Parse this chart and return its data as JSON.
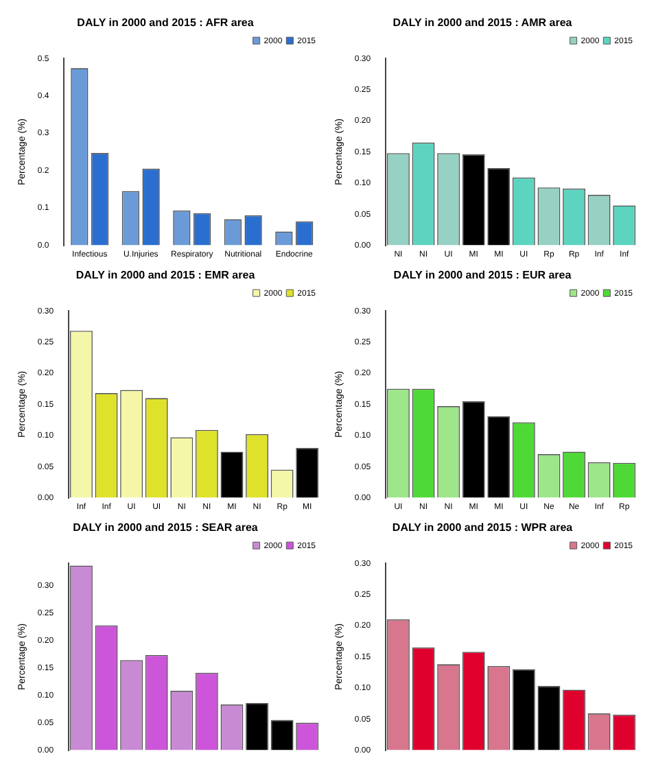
{
  "chart_data": [
    {
      "type": "bar",
      "title": "DALY in 2000 and 2015 : AFR area",
      "ylabel": "Percentage (%)",
      "categories": [
        "Infectious",
        "U.Injuries",
        "Respiratory",
        "Nutritional",
        "Endocrine"
      ],
      "series": [
        {
          "name": "2000",
          "color": "#6a9bd8",
          "values": [
            0.474,
            0.145,
            0.093,
            0.07,
            0.037
          ]
        },
        {
          "name": "2015",
          "color": "#2a6fcf",
          "values": [
            0.247,
            0.205,
            0.086,
            0.08,
            0.064
          ]
        }
      ],
      "ylim": [
        0,
        0.5
      ],
      "yticks": [
        {
          "value": 0,
          "label": "0.0"
        },
        {
          "value": 0.1,
          "label": "0.1"
        },
        {
          "value": 0.2,
          "label": "0.2"
        },
        {
          "value": 0.3,
          "label": "0.3"
        },
        {
          "value": 0.4,
          "label": "0.4"
        },
        {
          "value": 0.5,
          "label": "0.5"
        }
      ],
      "legend": "top right",
      "grid": false
    },
    {
      "type": "bar",
      "title": "DALY in 2000 and 2015 : AMR area",
      "ylabel": "Percentage (%)",
      "categories": [
        "NI",
        "NI",
        "UI",
        "MI",
        "MI",
        "UI",
        "Rp",
        "Rp",
        "Inf",
        "Inf"
      ],
      "series": [
        {
          "name": "2000",
          "color": "#96d1c4",
          "values": [
            0.148,
            null,
            0.148,
            null,
            0.124,
            null,
            0.093,
            null,
            0.081,
            null
          ],
          "colors": [
            "#96d1c4",
            null,
            "#96d1c4",
            null,
            "#000000",
            null,
            "#96d1c4",
            null,
            "#96d1c4",
            null
          ]
        },
        {
          "name": "2015",
          "color": "#5dd4c0",
          "values": [
            null,
            0.165,
            null,
            0.146,
            null,
            0.109,
            null,
            0.091,
            null,
            0.064
          ],
          "colors": [
            null,
            "#5dd4c0",
            null,
            "#000000",
            null,
            "#5dd4c0",
            null,
            "#5dd4c0",
            null,
            "#5dd4c0"
          ]
        }
      ],
      "ylim": [
        0,
        0.3
      ],
      "yticks": [
        {
          "value": 0,
          "label": "0.00"
        },
        {
          "value": 0.05,
          "label": "0.05"
        },
        {
          "value": 0.1,
          "label": "0.10"
        },
        {
          "value": 0.15,
          "label": "0.15"
        },
        {
          "value": 0.2,
          "label": "0.20"
        },
        {
          "value": 0.25,
          "label": "0.25"
        },
        {
          "value": 0.3,
          "label": "0.30"
        }
      ],
      "legend": "top right",
      "grid": false
    },
    {
      "type": "bar",
      "title": "DALY in 2000 and 2015 : EMR area",
      "ylabel": "Percentage (%)",
      "categories": [
        "Inf",
        "Inf",
        "UI",
        "UI",
        "NI",
        "NI",
        "MI",
        "NI",
        "Rp",
        "MI"
      ],
      "series": [
        {
          "name": "2000",
          "color": "#f4f7a8",
          "values": [
            0.268,
            null,
            0.173,
            null,
            0.097,
            null,
            0.074,
            null,
            0.045,
            null
          ],
          "colors": [
            "#f4f7a8",
            null,
            "#f4f7a8",
            null,
            "#f4f7a8",
            null,
            "#000000",
            null,
            "#f4f7a8",
            null
          ]
        },
        {
          "name": "2015",
          "color": "#dfe22a",
          "values": [
            null,
            0.168,
            null,
            0.16,
            null,
            0.109,
            null,
            0.102,
            null,
            0.08
          ],
          "colors": [
            null,
            "#dfe22a",
            null,
            "#dfe22a",
            null,
            "#dfe22a",
            null,
            "#dfe22a",
            null,
            "#000000"
          ]
        }
      ],
      "ylim": [
        0,
        0.3
      ],
      "yticks": [
        {
          "value": 0,
          "label": "0.00"
        },
        {
          "value": 0.05,
          "label": "0.05"
        },
        {
          "value": 0.1,
          "label": "0.10"
        },
        {
          "value": 0.15,
          "label": "0.15"
        },
        {
          "value": 0.2,
          "label": "0.20"
        },
        {
          "value": 0.25,
          "label": "0.25"
        },
        {
          "value": 0.3,
          "label": "0.30"
        }
      ],
      "legend": "top right",
      "grid": false
    },
    {
      "type": "bar",
      "title": "DALY in 2000 and 2015 : EUR area",
      "ylabel": "Percentage (%)",
      "categories": [
        "UI",
        "NI",
        "NI",
        "MI",
        "MI",
        "UI",
        "Ne",
        "Ne",
        "Inf",
        "Rp"
      ],
      "series": [
        {
          "name": "2000",
          "color": "#9de68a",
          "values": [
            0.175,
            null,
            0.147,
            null,
            0.131,
            null,
            0.07,
            null,
            0.057,
            null
          ],
          "colors": [
            "#9de68a",
            null,
            "#9de68a",
            null,
            "#000000",
            null,
            "#9de68a",
            null,
            "#9de68a",
            null
          ]
        },
        {
          "name": "2015",
          "color": "#4ed936",
          "values": [
            null,
            0.175,
            null,
            0.155,
            null,
            0.121,
            null,
            0.074,
            null,
            0.056
          ],
          "colors": [
            null,
            "#4ed936",
            null,
            "#000000",
            null,
            "#4ed936",
            null,
            "#4ed936",
            null,
            "#4ed936"
          ]
        }
      ],
      "ylim": [
        0,
        0.3
      ],
      "yticks": [
        {
          "value": 0,
          "label": "0.00"
        },
        {
          "value": 0.05,
          "label": "0.05"
        },
        {
          "value": 0.1,
          "label": "0.10"
        },
        {
          "value": 0.15,
          "label": "0.15"
        },
        {
          "value": 0.2,
          "label": "0.20"
        },
        {
          "value": 0.25,
          "label": "0.25"
        },
        {
          "value": 0.3,
          "label": "0.30"
        }
      ],
      "legend": "top right",
      "grid": false
    },
    {
      "type": "bar",
      "title": "DALY in 2000 and 2015 : SEAR area",
      "ylabel": "Percentage (%)",
      "categories": [
        null,
        null,
        null,
        null,
        null,
        null,
        null,
        null,
        null,
        null
      ],
      "series": [
        {
          "name": "2000",
          "color": "#c98ad4",
          "values": [
            0.336,
            null,
            0.164,
            null,
            0.108,
            null,
            0.083,
            null,
            0.055,
            null
          ],
          "colors": [
            "#c98ad4",
            null,
            "#c98ad4",
            null,
            "#c98ad4",
            null,
            "#c98ad4",
            null,
            "#000000",
            null
          ]
        },
        {
          "name": "2015",
          "color": "#cc55d9",
          "values": [
            null,
            0.227,
            null,
            0.173,
            null,
            0.141,
            null,
            0.086,
            null,
            0.05
          ],
          "colors": [
            null,
            "#cc55d9",
            null,
            "#cc55d9",
            null,
            "#cc55d9",
            null,
            "#000000",
            null,
            "#cc55d9"
          ]
        }
      ],
      "ylim": [
        0,
        0.34
      ],
      "yticks": [
        {
          "value": 0,
          "label": "0.00"
        },
        {
          "value": 0.05,
          "label": "0.05"
        },
        {
          "value": 0.1,
          "label": "0.10"
        },
        {
          "value": 0.15,
          "label": "0.15"
        },
        {
          "value": 0.2,
          "label": "0.20"
        },
        {
          "value": 0.25,
          "label": "0.25"
        },
        {
          "value": 0.3,
          "label": "0.30"
        }
      ],
      "legend": "top right",
      "grid": false
    },
    {
      "type": "bar",
      "title": "DALY in 2000 and 2015 : WPR area",
      "ylabel": "Percentage (%)",
      "categories": [
        null,
        null,
        null,
        null,
        null,
        null,
        null,
        null,
        null,
        null
      ],
      "series": [
        {
          "name": "2000",
          "color": "#d8768e",
          "values": [
            0.21,
            null,
            0.138,
            null,
            0.135,
            null,
            0.103,
            null,
            0.059,
            null
          ],
          "colors": [
            "#d8768e",
            null,
            "#d8768e",
            null,
            "#d8768e",
            null,
            "#000000",
            null,
            "#d8768e",
            null
          ]
        },
        {
          "name": "2015",
          "color": "#e0002e",
          "values": [
            null,
            0.165,
            null,
            0.158,
            null,
            0.13,
            null,
            0.097,
            null,
            0.057
          ],
          "colors": [
            null,
            "#e0002e",
            null,
            "#e0002e",
            null,
            "#000000",
            null,
            "#e0002e",
            null,
            "#e0002e"
          ]
        }
      ],
      "ylim": [
        0,
        0.3
      ],
      "yticks": [
        {
          "value": 0,
          "label": "0.00"
        },
        {
          "value": 0.05,
          "label": "0.05"
        },
        {
          "value": 0.1,
          "label": "0.10"
        },
        {
          "value": 0.15,
          "label": "0.15"
        },
        {
          "value": 0.2,
          "label": "0.20"
        },
        {
          "value": 0.25,
          "label": "0.25"
        },
        {
          "value": 0.3,
          "label": "0.30"
        }
      ],
      "legend": "top right",
      "grid": false
    }
  ]
}
